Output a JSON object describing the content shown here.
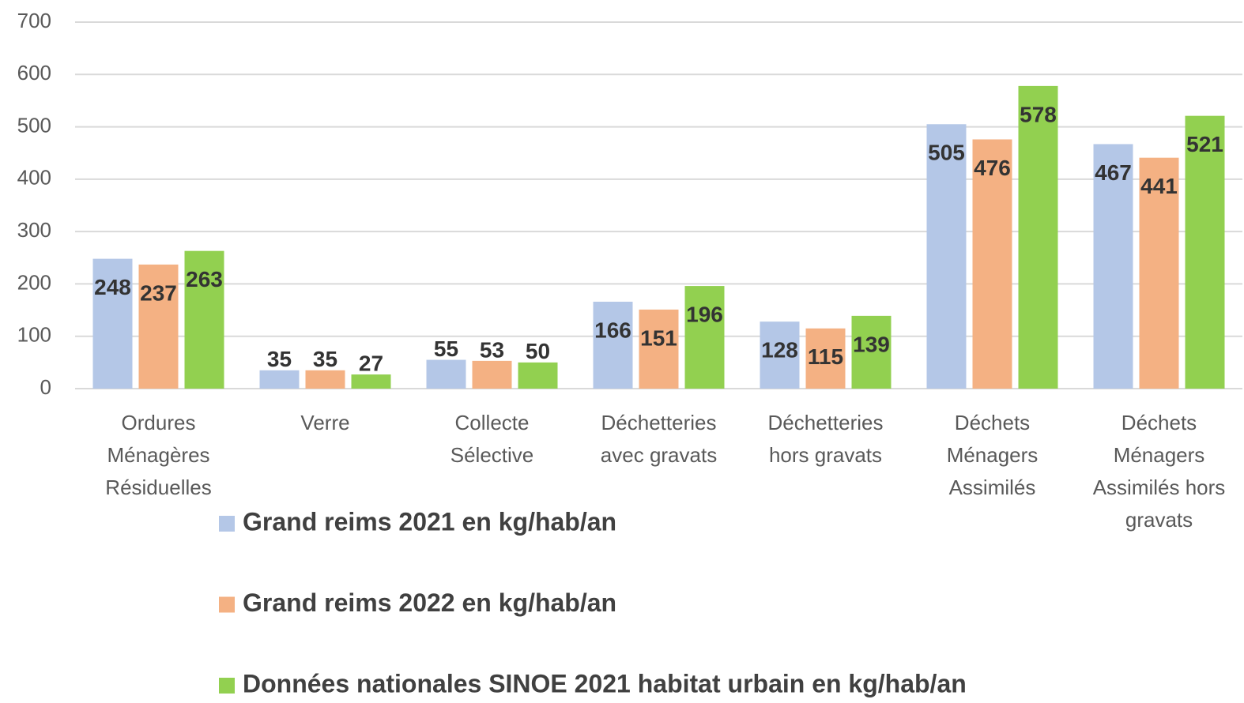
{
  "chart_data": {
    "type": "bar",
    "categories": [
      "Ordures Ménagères Résiduelles",
      "Verre",
      "Collecte Sélective",
      "Déchetteries avec gravats",
      "Déchetteries hors gravats",
      "Déchets Ménagers Assimilés",
      "Déchets Ménagers Assimilés hors gravats"
    ],
    "series": [
      {
        "name": "Grand reims 2021 en kg/hab/an",
        "color": "#b4c7e7",
        "values": [
          248,
          35,
          55,
          166,
          128,
          505,
          467
        ]
      },
      {
        "name": "Grand reims 2022 en kg/hab/an",
        "color": "#f4b183",
        "values": [
          237,
          35,
          53,
          151,
          115,
          476,
          441
        ]
      },
      {
        "name": "Données nationales SINOE 2021 habitat urbain en kg/hab/an",
        "color": "#92d050",
        "values": [
          263,
          27,
          50,
          196,
          139,
          578,
          521
        ]
      }
    ],
    "ylim": [
      0,
      700
    ],
    "yticks": [
      0,
      100,
      200,
      300,
      400,
      500,
      600,
      700
    ],
    "grid": true,
    "legend": "bottom"
  }
}
